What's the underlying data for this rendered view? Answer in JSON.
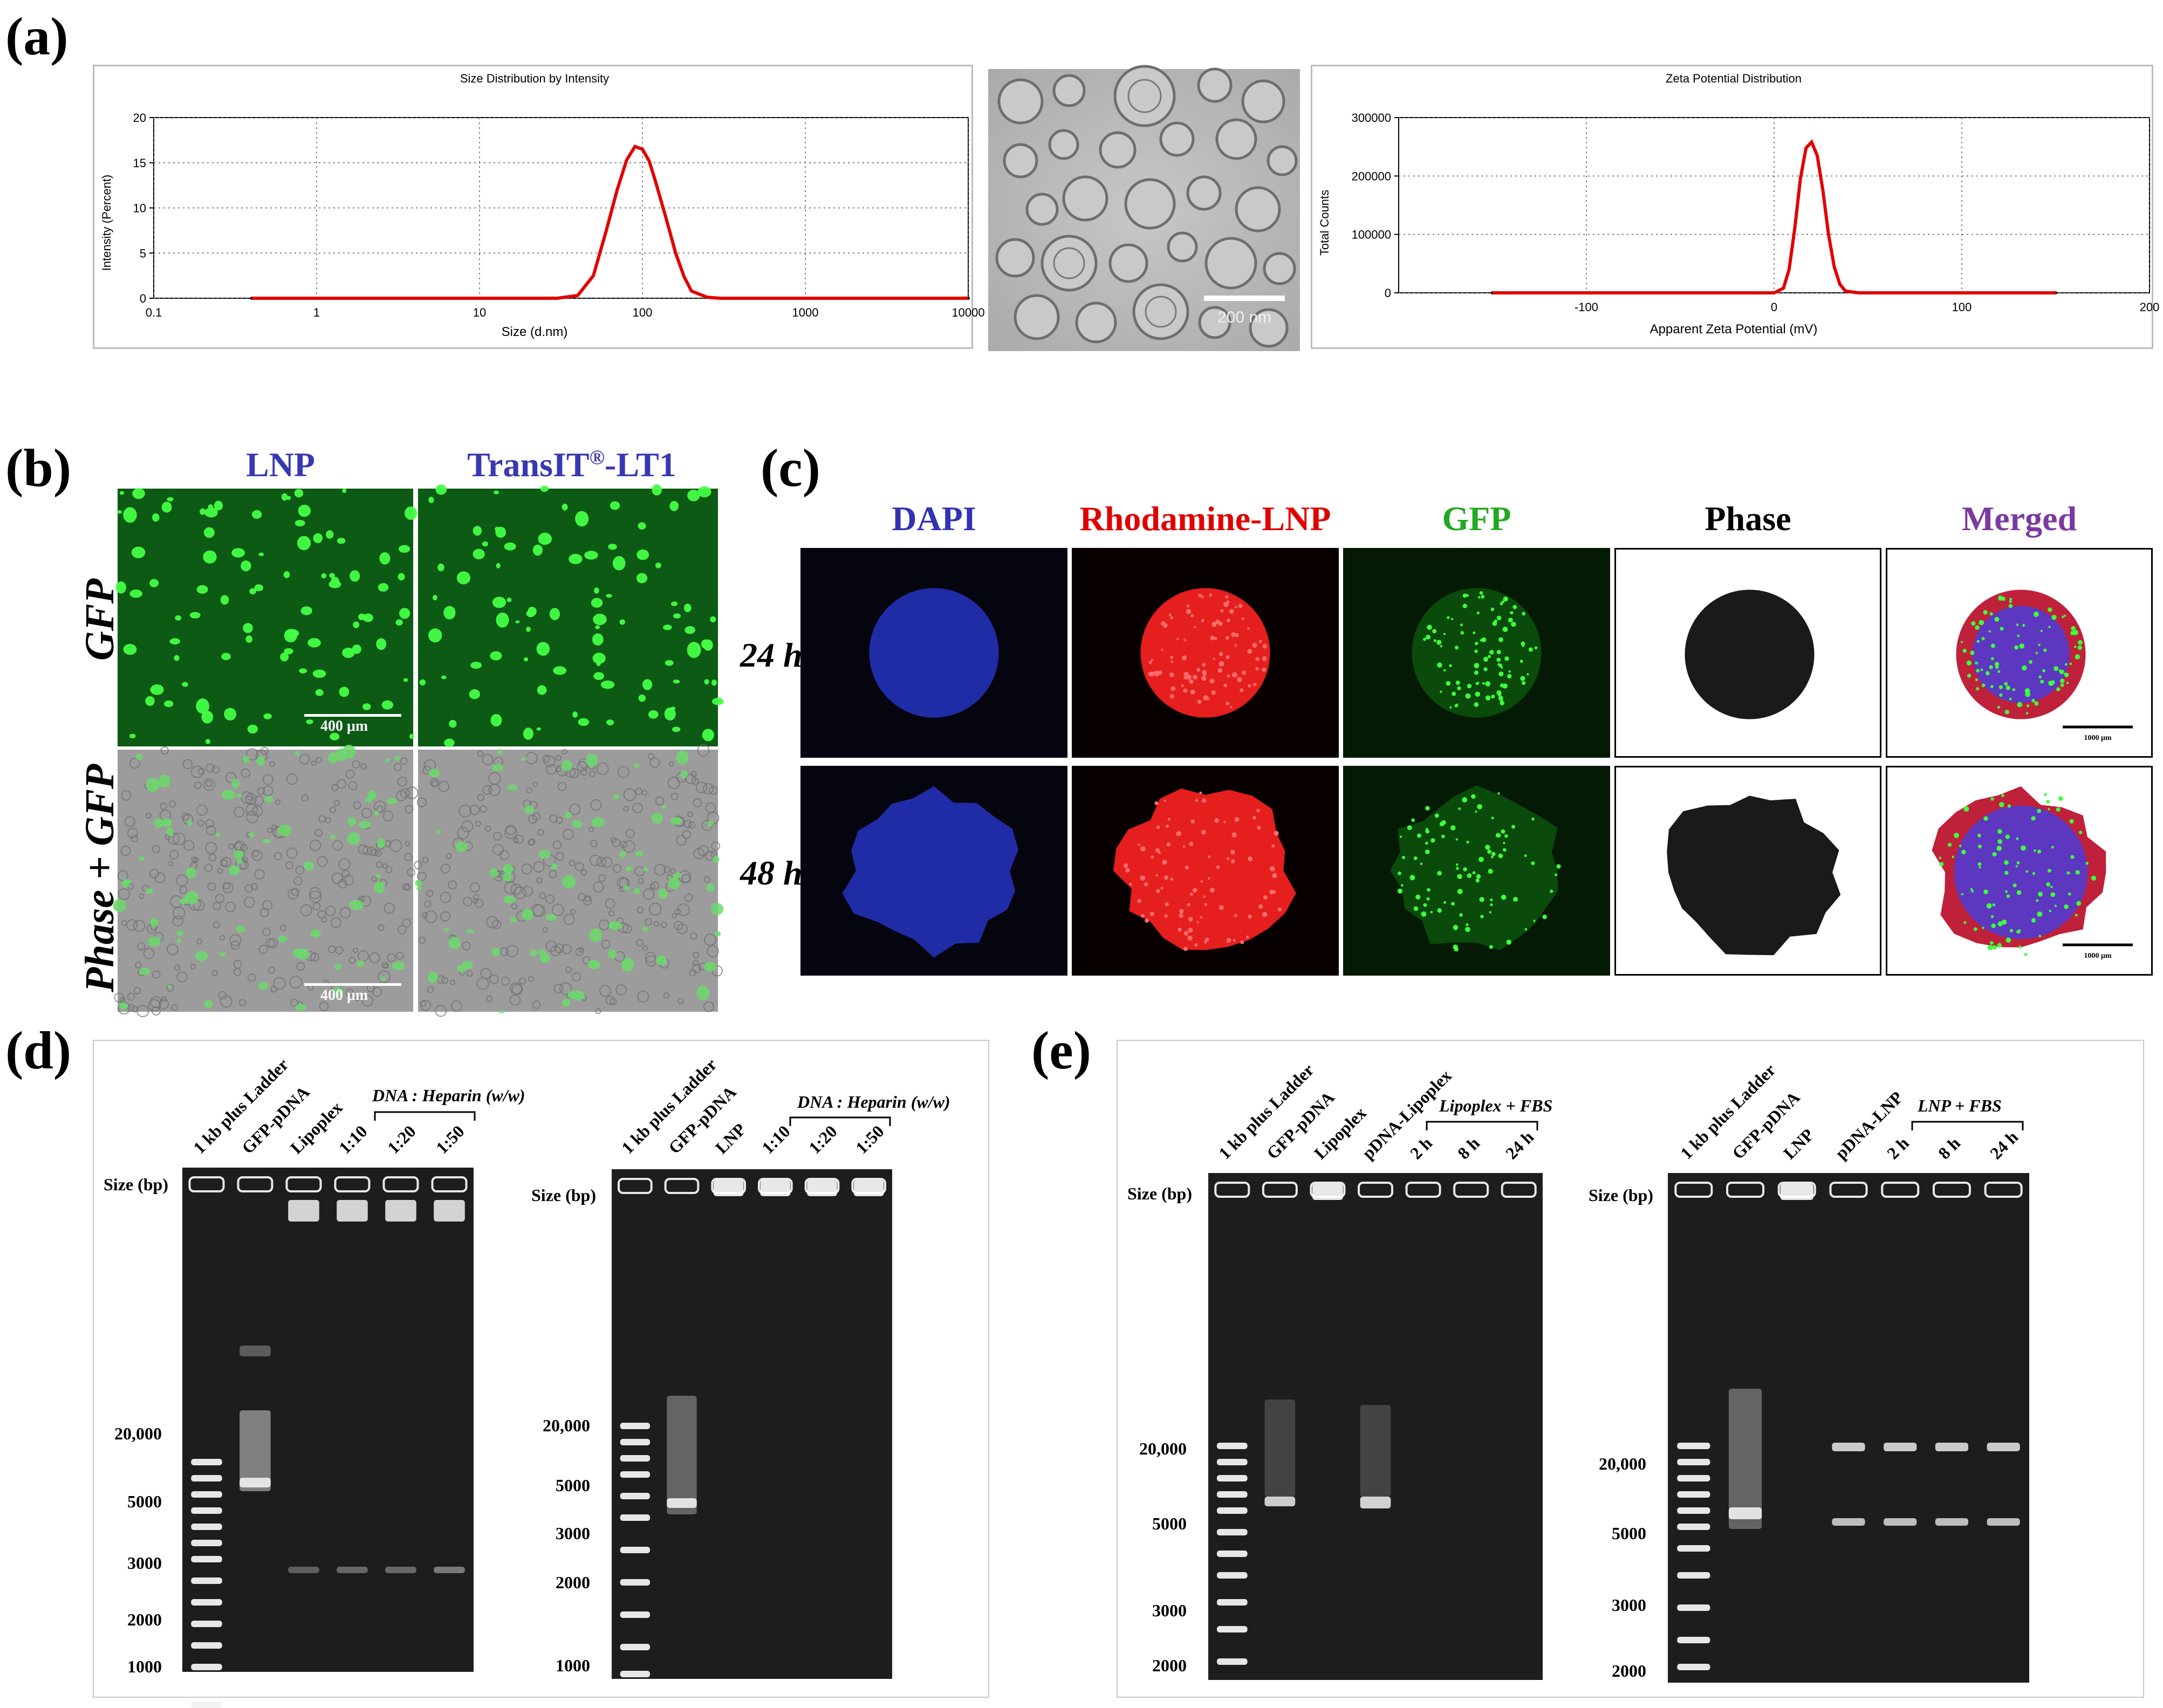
{
  "panels": {
    "a": "(a)",
    "b": "(b)",
    "c": "(c)",
    "d": "(d)",
    "e": "(e)"
  },
  "a": {
    "size_plot": {
      "title": "Size Distribution by Intensity",
      "xlabel": "Size (d.nm)",
      "ylabel": "Intensity (Percent)",
      "x_ticks": [
        "0.1",
        "1",
        "10",
        "100",
        "1000",
        "10000"
      ],
      "y_ticks": [
        "0",
        "5",
        "10",
        "15",
        "20"
      ],
      "line_color": "#e00000"
    },
    "tem": {
      "scale_label": "200 nm"
    },
    "zeta_plot": {
      "title": "Zeta Potential Distribution",
      "xlabel": "Apparent Zeta Potential (mV)",
      "ylabel": "Total Counts",
      "x_ticks": [
        "-100",
        "0",
        "100",
        "200"
      ],
      "y_ticks": [
        "0",
        "100000",
        "200000",
        "300000"
      ],
      "line_color": "#e00000"
    }
  },
  "chart_data": [
    {
      "type": "line",
      "title": "Size Distribution by Intensity",
      "xlabel": "Size (d.nm)",
      "ylabel": "Intensity (Percent)",
      "x_scale": "log",
      "xlim": [
        0.1,
        10000
      ],
      "ylim": [
        0,
        20
      ],
      "grid": true,
      "x": [
        0.4,
        10,
        30,
        40,
        50,
        60,
        70,
        80,
        90,
        100,
        110,
        120,
        140,
        160,
        180,
        200,
        250,
        300,
        500,
        10000
      ],
      "y": [
        0,
        0,
        0,
        0.3,
        2.5,
        7.5,
        12.0,
        15.3,
        16.8,
        16.5,
        15.2,
        13.0,
        8.8,
        5.0,
        2.4,
        0.8,
        0.1,
        0,
        0,
        0
      ]
    },
    {
      "type": "line",
      "title": "Zeta Potential Distribution",
      "xlabel": "Apparent Zeta Potential (mV)",
      "ylabel": "Total Counts",
      "xlim": [
        -200,
        200
      ],
      "ylim": [
        0,
        300000
      ],
      "grid": true,
      "x": [
        -150,
        0,
        5,
        8,
        11,
        14,
        17,
        20,
        23,
        26,
        29,
        32,
        35,
        38,
        45,
        150
      ],
      "y": [
        0,
        0,
        8000,
        40000,
        110000,
        195000,
        248000,
        258000,
        235000,
        175000,
        100000,
        45000,
        15000,
        3000,
        0,
        0
      ]
    }
  ],
  "b": {
    "col_lnp": "LNP",
    "col_transit_pre": "TransIT",
    "col_transit_sup": "®",
    "col_transit_post": "-LT1",
    "row_gfp": "GFP",
    "row_phase_gfp": "Phase + GFP",
    "scale_label": "400 μm"
  },
  "c": {
    "cols": [
      "DAPI",
      "Rhodamine-LNP",
      "GFP",
      "Phase",
      "Merged"
    ],
    "col_colors": [
      "#3232b4",
      "#e00000",
      "#21a921",
      "#000000",
      "#7a3aa0"
    ],
    "rows": [
      "24 h",
      "48 h"
    ],
    "scale_label": "1000 μm"
  },
  "d": {
    "size_label": "Size (bp)",
    "bracket_label": "DNA : Heparin (w/w)",
    "gel1_lanes": [
      "1 kb plus Ladder",
      "GFP-pDNA",
      "Lipoplex",
      "1:10",
      "1:20",
      "1:50"
    ],
    "gel1_bp": [
      "20,000",
      "5000",
      "3000",
      "2000",
      "1000"
    ],
    "gel2_lanes": [
      "1 kb plus Ladder",
      "GFP-pDNA",
      "LNP",
      "1:10",
      "1:20",
      "1:50"
    ],
    "gel2_bp": [
      "20,000",
      "5000",
      "3000",
      "2000",
      "1000"
    ]
  },
  "e": {
    "size_label": "Size (bp)",
    "bracket1_label": "Lipoplex + FBS",
    "bracket2_label": "LNP + FBS",
    "gel1_lanes": [
      "1 kb plus Ladder",
      "GFP-pDNA",
      "Lipoplex",
      "pDNA-Lipoplex",
      "2 h",
      "8 h",
      "24 h"
    ],
    "gel1_bp": [
      "20,000",
      "5000",
      "3000",
      "2000"
    ],
    "gel2_lanes": [
      "1 kb plus Ladder",
      "GFP-pDNA",
      "LNP",
      "pDNA-LNP",
      "2 h",
      "8 h",
      "24 h"
    ],
    "gel2_bp": [
      "20,000",
      "5000",
      "3000",
      "2000"
    ]
  }
}
